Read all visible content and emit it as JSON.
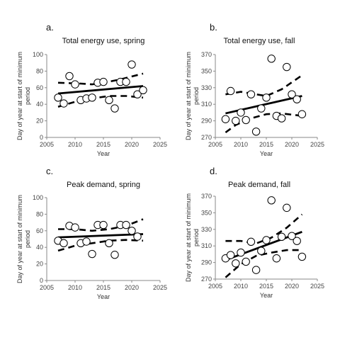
{
  "y_axis_label": "Day of year at start of minimum period",
  "chart_data": [
    {
      "type": "scatter",
      "panel_label": "a.",
      "title": "Total energy use, spring",
      "xlabel": "Year",
      "ylabel": "Day of year at start of minimum period",
      "xlim": [
        2005,
        2025
      ],
      "ylim": [
        0,
        100
      ],
      "xticks": [
        2005,
        2010,
        2015,
        2020,
        2025
      ],
      "yticks": [
        0,
        20,
        40,
        60,
        80,
        100
      ],
      "points": {
        "x": [
          2007,
          2008,
          2009,
          2010,
          2011,
          2012,
          2013,
          2014,
          2015,
          2016,
          2017,
          2018,
          2019,
          2020,
          2021,
          2022
        ],
        "y": [
          48,
          41,
          74,
          64,
          45,
          47,
          48,
          66,
          67,
          45,
          35,
          67,
          67,
          88,
          52,
          57
        ]
      },
      "trend": {
        "x": [
          2007,
          2022
        ],
        "y": [
          53,
          62
        ]
      },
      "upper_band": {
        "x": [
          2007,
          2011,
          2013,
          2015,
          2018,
          2022
        ],
        "y": [
          66,
          65,
          64,
          66,
          70,
          77
        ]
      },
      "lower_band": {
        "x": [
          2007,
          2010,
          2013,
          2016,
          2019,
          2022
        ],
        "y": [
          37,
          43,
          47,
          50,
          50,
          48
        ]
      }
    },
    {
      "type": "scatter",
      "panel_label": "b.",
      "title": "Total energy use, fall",
      "xlabel": "Year",
      "ylabel": "Day of year at start of minimum period",
      "xlim": [
        2005,
        2025
      ],
      "ylim": [
        270,
        370
      ],
      "xticks": [
        2005,
        2010,
        2015,
        2020,
        2025
      ],
      "yticks": [
        270,
        290,
        310,
        330,
        350,
        370
      ],
      "points": {
        "x": [
          2007,
          2008,
          2009,
          2010,
          2011,
          2012,
          2013,
          2014,
          2015,
          2016,
          2017,
          2018,
          2019,
          2020,
          2021,
          2022
        ],
        "y": [
          292,
          326,
          290,
          300,
          291,
          322,
          277,
          305,
          318,
          365,
          296,
          293,
          355,
          322,
          316,
          298
        ]
      },
      "trend": {
        "x": [
          2007,
          2022
        ],
        "y": [
          299,
          320
        ]
      },
      "upper_band": {
        "x": [
          2007,
          2010,
          2013,
          2015,
          2018,
          2022
        ],
        "y": [
          322,
          325,
          322,
          320,
          328,
          345
        ]
      },
      "lower_band": {
        "x": [
          2007,
          2009,
          2012,
          2015,
          2018,
          2022
        ],
        "y": [
          276,
          285,
          293,
          298,
          299,
          296
        ]
      }
    },
    {
      "type": "scatter",
      "panel_label": "c.",
      "title": "Peak demand, spring",
      "xlabel": "Year",
      "ylabel": "Day of year at start of minimum period",
      "xlim": [
        2005,
        2025
      ],
      "ylim": [
        0,
        100
      ],
      "xticks": [
        2005,
        2010,
        2015,
        2020,
        2025
      ],
      "yticks": [
        0,
        20,
        40,
        60,
        80,
        100
      ],
      "points": {
        "x": [
          2007,
          2008,
          2009,
          2010,
          2011,
          2012,
          2013,
          2014,
          2015,
          2016,
          2017,
          2018,
          2019,
          2020,
          2021
        ],
        "y": [
          48,
          45,
          66,
          64,
          45,
          47,
          32,
          67,
          67,
          45,
          31,
          67,
          67,
          60,
          53
        ]
      },
      "trend": {
        "x": [
          2007,
          2022
        ],
        "y": [
          52,
          56
        ]
      },
      "upper_band": {
        "x": [
          2007,
          2010,
          2013,
          2016,
          2019,
          2022
        ],
        "y": [
          62,
          62,
          60,
          62,
          66,
          74
        ]
      },
      "lower_band": {
        "x": [
          2007,
          2010,
          2013,
          2016,
          2019,
          2022
        ],
        "y": [
          36,
          42,
          45,
          48,
          49,
          48
        ]
      }
    },
    {
      "type": "scatter",
      "panel_label": "d.",
      "title": "Peak demand, fall",
      "xlabel": "Year",
      "ylabel": "Day of year at start of minimum period",
      "xlim": [
        2005,
        2025
      ],
      "ylim": [
        270,
        370
      ],
      "xticks": [
        2005,
        2010,
        2015,
        2020,
        2025
      ],
      "yticks": [
        270,
        290,
        310,
        330,
        350,
        370
      ],
      "points": {
        "x": [
          2007,
          2008,
          2009,
          2010,
          2011,
          2012,
          2013,
          2014,
          2015,
          2016,
          2017,
          2018,
          2019,
          2020,
          2021,
          2022
        ],
        "y": [
          295,
          299,
          289,
          302,
          291,
          315,
          281,
          304,
          317,
          365,
          295,
          321,
          356,
          322,
          316,
          297
        ]
      },
      "trend": {
        "x": [
          2007,
          2022
        ],
        "y": [
          293,
          327
        ]
      },
      "upper_band": {
        "x": [
          2007,
          2010,
          2013,
          2016,
          2019,
          2022
        ],
        "y": [
          316,
          316,
          313,
          320,
          332,
          348
        ]
      },
      "lower_band": {
        "x": [
          2007,
          2010,
          2013,
          2016,
          2019,
          2022
        ],
        "y": [
          272,
          288,
          298,
          302,
          305,
          305
        ]
      }
    }
  ]
}
